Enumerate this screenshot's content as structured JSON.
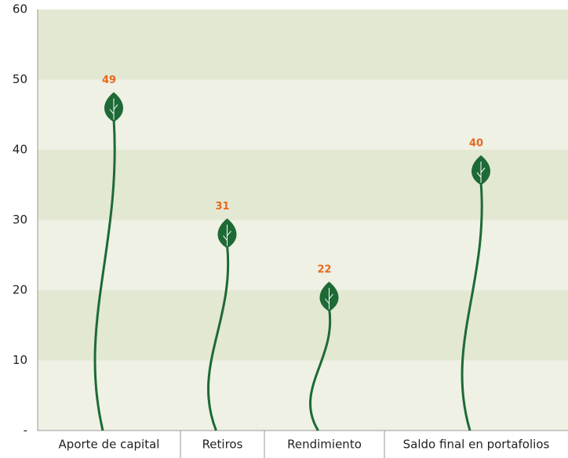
{
  "chart_data": {
    "type": "pictogram",
    "categories": [
      "Aporte de capital",
      "Retiros",
      "Rendimiento",
      "Saldo final en portafolios"
    ],
    "values": [
      49,
      31,
      22,
      40
    ],
    "color": "#1d6a36",
    "label_color": "#e8681f",
    "ylim": [
      0,
      60
    ],
    "yticks": [
      {
        "value": 0,
        "label": "-"
      },
      10,
      20,
      30,
      40,
      50,
      60
    ],
    "grid": true
  }
}
